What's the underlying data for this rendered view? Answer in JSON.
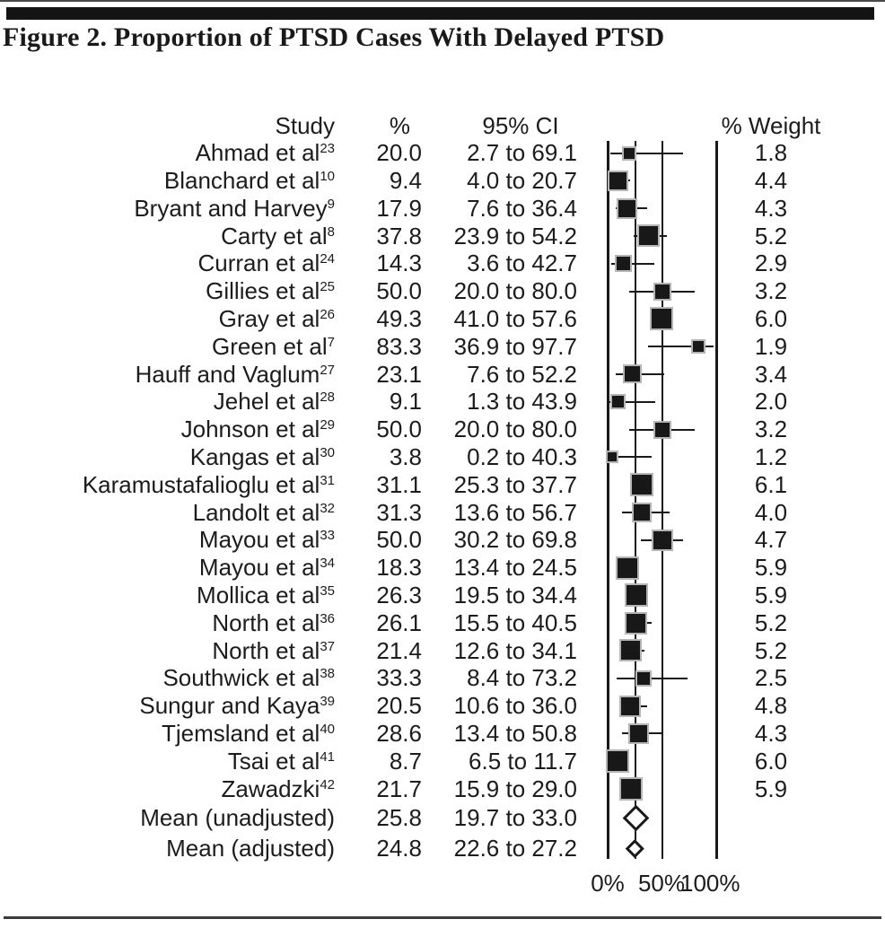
{
  "figure": {
    "title": "Figure 2. Proportion of PTSD Cases With Delayed PTSD"
  },
  "chart_data": {
    "type": "forest",
    "title": "Figure 2. Proportion of PTSD Cases With Delayed PTSD",
    "columns": {
      "study": "Study",
      "pct": "%",
      "ci": "95% CI",
      "weight": "% Weight"
    },
    "axis": {
      "ticks": [
        "0%",
        "50%",
        "100%"
      ],
      "range": [
        0,
        100
      ],
      "unit": "percent"
    },
    "mean_reference_line": 25.8,
    "rows": [
      {
        "study": "Ahmad et al",
        "ref": "23",
        "pct": "20.0",
        "ci": "2.7 to 69.1",
        "weight": "1.8"
      },
      {
        "study": "Blanchard et al",
        "ref": "10",
        "pct": "9.4",
        "ci": "4.0 to 20.7",
        "weight": "4.4"
      },
      {
        "study": "Bryant and Harvey",
        "ref": "9",
        "pct": "17.9",
        "ci": "7.6 to 36.4",
        "weight": "4.3"
      },
      {
        "study": "Carty et al",
        "ref": "8",
        "pct": "37.8",
        "ci": "23.9 to 54.2",
        "weight": "5.2"
      },
      {
        "study": "Curran et al",
        "ref": "24",
        "pct": "14.3",
        "ci": "3.6 to 42.7",
        "weight": "2.9"
      },
      {
        "study": "Gillies et al",
        "ref": "25",
        "pct": "50.0",
        "ci": "20.0 to 80.0",
        "weight": "3.2"
      },
      {
        "study": "Gray et al",
        "ref": "26",
        "pct": "49.3",
        "ci": "41.0 to 57.6",
        "weight": "6.0"
      },
      {
        "study": "Green et al",
        "ref": "7",
        "pct": "83.3",
        "ci": "36.9 to 97.7",
        "weight": "1.9"
      },
      {
        "study": "Hauff and Vaglum",
        "ref": "27",
        "pct": "23.1",
        "ci": "7.6 to 52.2",
        "weight": "3.4"
      },
      {
        "study": "Jehel et al",
        "ref": "28",
        "pct": "9.1",
        "ci": "1.3 to 43.9",
        "weight": "2.0"
      },
      {
        "study": "Johnson et al",
        "ref": "29",
        "pct": "50.0",
        "ci": "20.0 to 80.0",
        "weight": "3.2"
      },
      {
        "study": "Kangas et al",
        "ref": "30",
        "pct": "3.8",
        "ci": "0.2 to 40.3",
        "weight": "1.2"
      },
      {
        "study": "Karamustafalioglu et al",
        "ref": "31",
        "pct": "31.1",
        "ci": "25.3 to 37.7",
        "weight": "6.1"
      },
      {
        "study": "Landolt et al",
        "ref": "32",
        "pct": "31.3",
        "ci": "13.6 to 56.7",
        "weight": "4.0"
      },
      {
        "study": "Mayou et al",
        "ref": "33",
        "pct": "50.0",
        "ci": "30.2 to 69.8",
        "weight": "4.7"
      },
      {
        "study": "Mayou et al",
        "ref": "34",
        "pct": "18.3",
        "ci": "13.4 to 24.5",
        "weight": "5.9"
      },
      {
        "study": "Mollica et al",
        "ref": "35",
        "pct": "26.3",
        "ci": "19.5 to 34.4",
        "weight": "5.9"
      },
      {
        "study": "North et al",
        "ref": "36",
        "pct": "26.1",
        "ci": "15.5 to 40.5",
        "weight": "5.2"
      },
      {
        "study": "North et al",
        "ref": "37",
        "pct": "21.4",
        "ci": "12.6 to 34.1",
        "weight": "5.2"
      },
      {
        "study": "Southwick et al",
        "ref": "38",
        "pct": "33.3",
        "ci": "8.4 to 73.2",
        "weight": "2.5"
      },
      {
        "study": "Sungur and Kaya",
        "ref": "39",
        "pct": "20.5",
        "ci": "10.6 to 36.0",
        "weight": "4.8"
      },
      {
        "study": "Tjemsland et al",
        "ref": "40",
        "pct": "28.6",
        "ci": "13.4 to 50.8",
        "weight": "4.3"
      },
      {
        "study": "Tsai et al",
        "ref": "41",
        "pct": "8.7",
        "ci": "6.5 to 11.7",
        "weight": "6.0"
      },
      {
        "study": "Zawadzki",
        "ref": "42",
        "pct": "21.7",
        "ci": "15.9 to 29.0",
        "weight": "5.9"
      }
    ],
    "means": [
      {
        "study": "Mean (unadjusted)",
        "ref": "",
        "pct": "25.8",
        "ci": "19.7 to 33.0",
        "weight": "",
        "diamond": "large"
      },
      {
        "study": "Mean (adjusted)",
        "ref": "",
        "pct": "24.8",
        "ci": "22.6 to 27.2",
        "weight": "",
        "diamond": "small"
      }
    ]
  }
}
